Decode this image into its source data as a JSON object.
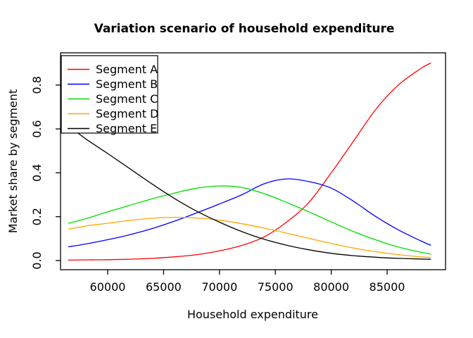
{
  "chart_data": {
    "type": "line",
    "title": "Variation scenario of household expenditure",
    "xlabel": "Household expenditure",
    "ylabel": "Market share by segment",
    "xlim": [
      55800,
      90200
    ],
    "ylim": [
      -0.04,
      0.95
    ],
    "grid": false,
    "x_tick_values": [
      60000,
      65000,
      70000,
      75000,
      80000,
      85000
    ],
    "x_tick_labels": [
      "60000",
      "65000",
      "70000",
      "75000",
      "80000",
      "85000"
    ],
    "y_tick_values": [
      0.0,
      0.2,
      0.4,
      0.6,
      0.8
    ],
    "y_tick_labels": [
      "0.0",
      "0.2",
      "0.4",
      "0.6",
      "0.8"
    ],
    "legend": {
      "position": "topleft",
      "entries": [
        "Segment A",
        "Segment B",
        "Segment C",
        "Segment D",
        "Segment E"
      ]
    },
    "x": [
      56500,
      58000,
      60000,
      62000,
      64000,
      66000,
      68000,
      70000,
      72000,
      74000,
      76000,
      78000,
      80000,
      82000,
      84000,
      86000,
      88000,
      88900
    ],
    "series": [
      {
        "name": "Segment A",
        "color": "#ff0000",
        "values": [
          0.002,
          0.003,
          0.004,
          0.006,
          0.01,
          0.017,
          0.027,
          0.044,
          0.069,
          0.108,
          0.175,
          0.265,
          0.4,
          0.545,
          0.69,
          0.8,
          0.875,
          0.9
        ]
      },
      {
        "name": "Segment B",
        "color": "#0000ff",
        "values": [
          0.063,
          0.075,
          0.095,
          0.118,
          0.146,
          0.18,
          0.218,
          0.258,
          0.3,
          0.35,
          0.372,
          0.36,
          0.33,
          0.27,
          0.2,
          0.14,
          0.09,
          0.07
        ]
      },
      {
        "name": "Segment C",
        "color": "#00dd00",
        "values": [
          0.17,
          0.19,
          0.222,
          0.252,
          0.282,
          0.308,
          0.33,
          0.34,
          0.333,
          0.305,
          0.265,
          0.222,
          0.176,
          0.132,
          0.094,
          0.062,
          0.038,
          0.03
        ]
      },
      {
        "name": "Segment D",
        "color": "#ffa500",
        "values": [
          0.143,
          0.157,
          0.17,
          0.183,
          0.193,
          0.197,
          0.194,
          0.184,
          0.168,
          0.148,
          0.125,
          0.101,
          0.078,
          0.057,
          0.04,
          0.027,
          0.017,
          0.014
        ]
      },
      {
        "name": "Segment E",
        "color": "#000000",
        "values": [
          0.615,
          0.556,
          0.488,
          0.418,
          0.348,
          0.282,
          0.224,
          0.175,
          0.132,
          0.097,
          0.07,
          0.049,
          0.033,
          0.022,
          0.015,
          0.01,
          0.007,
          0.006
        ]
      }
    ]
  }
}
